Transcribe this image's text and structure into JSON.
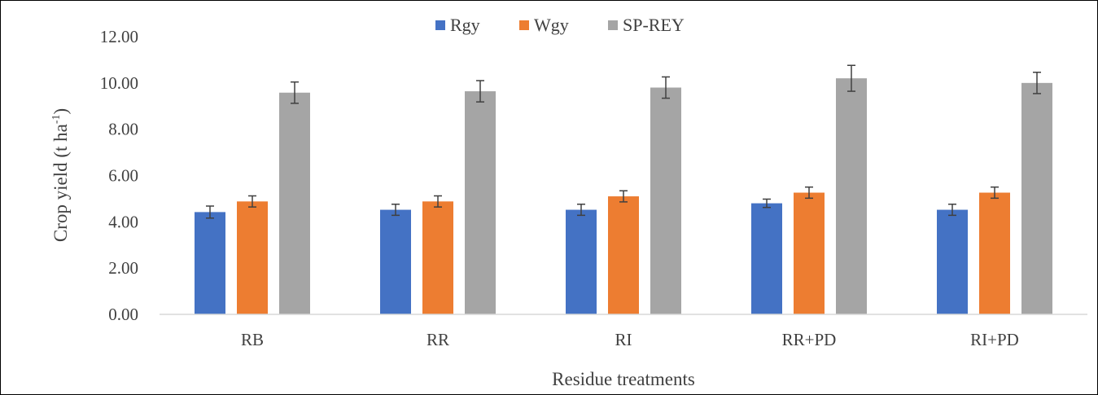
{
  "chart_data": {
    "type": "bar",
    "categories": [
      "RB",
      "RR",
      "RI",
      "RR+PD",
      "RI+PD"
    ],
    "series": [
      {
        "name": "Rgy",
        "color": "#4472C4",
        "values": [
          4.42,
          4.52,
          4.52,
          4.8,
          4.52
        ],
        "errors": [
          0.26,
          0.24,
          0.24,
          0.18,
          0.24
        ]
      },
      {
        "name": "Wgy",
        "color": "#ED7D31",
        "values": [
          4.88,
          4.88,
          5.1,
          5.26,
          5.26
        ],
        "errors": [
          0.24,
          0.24,
          0.24,
          0.24,
          0.24
        ]
      },
      {
        "name": "SP-REY",
        "color": "#A5A5A5",
        "values": [
          9.58,
          9.64,
          9.8,
          10.2,
          10.0
        ],
        "errors": [
          0.46,
          0.46,
          0.46,
          0.56,
          0.46
        ]
      }
    ],
    "xlabel": "Residue treatments",
    "ylabel_main": "Crop yield  (t ha",
    "ylabel_sup": "-1",
    "ylabel_close": ")",
    "ylim": [
      0,
      12
    ],
    "yticks": [
      "0.00",
      "2.00",
      "4.00",
      "6.00",
      "8.00",
      "10.00",
      "12.00"
    ],
    "grid": false,
    "legend_position": "top-center",
    "error_bar_color": "#404040"
  }
}
